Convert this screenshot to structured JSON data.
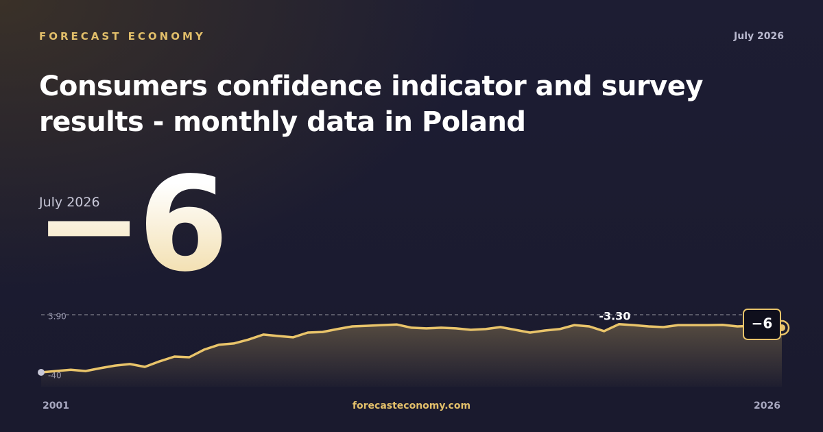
{
  "header": {
    "brand": "FORECAST ECONOMY",
    "date": "July 2026"
  },
  "title": "Consumers confidence indicator and survey results - monthly data in Poland",
  "hero": {
    "date_label": "July 2026",
    "value": "−6"
  },
  "footer": {
    "site": "forecasteconomy.com"
  },
  "chart_data": {
    "type": "line",
    "x": [
      2001,
      2001.5,
      2002,
      2002.5,
      2003,
      2003.5,
      2004,
      2004.5,
      2005,
      2005.5,
      2006,
      2006.5,
      2007,
      2007.5,
      2008,
      2008.5,
      2009,
      2009.5,
      2010,
      2010.5,
      2011,
      2011.5,
      2012,
      2012.5,
      2013,
      2013.5,
      2014,
      2014.5,
      2015,
      2015.5,
      2016,
      2016.5,
      2017,
      2017.5,
      2018,
      2018.5,
      2019,
      2019.5,
      2020,
      2020.5,
      2021,
      2021.5,
      2022,
      2022.5,
      2023,
      2023.5,
      2024,
      2024.5,
      2025,
      2025.5,
      2026
    ],
    "series": [
      {
        "color": "#e9c46a",
        "values": [
          -40,
          -39,
          -38,
          -39,
          -36.8,
          -34.8,
          -33.7,
          -35.8,
          -31.6,
          -28,
          -28.5,
          -22.7,
          -19,
          -18,
          -15,
          -11.2,
          -12.3,
          -13.3,
          -9.7,
          -9.2,
          -7,
          -5,
          -4.5,
          -4,
          -3.5,
          -6,
          -6.5,
          -6,
          -6.5,
          -7.6,
          -7,
          -5.5,
          -7.6,
          -9.7,
          -8.1,
          -7,
          -4,
          -5,
          -8.6,
          -3.3,
          -4,
          -5,
          -5.5,
          -4,
          -4,
          -4,
          -3.8,
          -5,
          -4.5,
          -5,
          -6
        ]
      }
    ],
    "xlim": [
      2001,
      2026
    ],
    "xticks": [
      2001,
      2026
    ],
    "ylim": [
      -40,
      3.9
    ],
    "yticks": [
      -40,
      {
        "value": 3.9,
        "label": "3.90"
      }
    ],
    "annotations": [
      {
        "x": 2020.5,
        "label": "-3.30"
      },
      {
        "x": 2026,
        "label": "−6"
      }
    ]
  }
}
